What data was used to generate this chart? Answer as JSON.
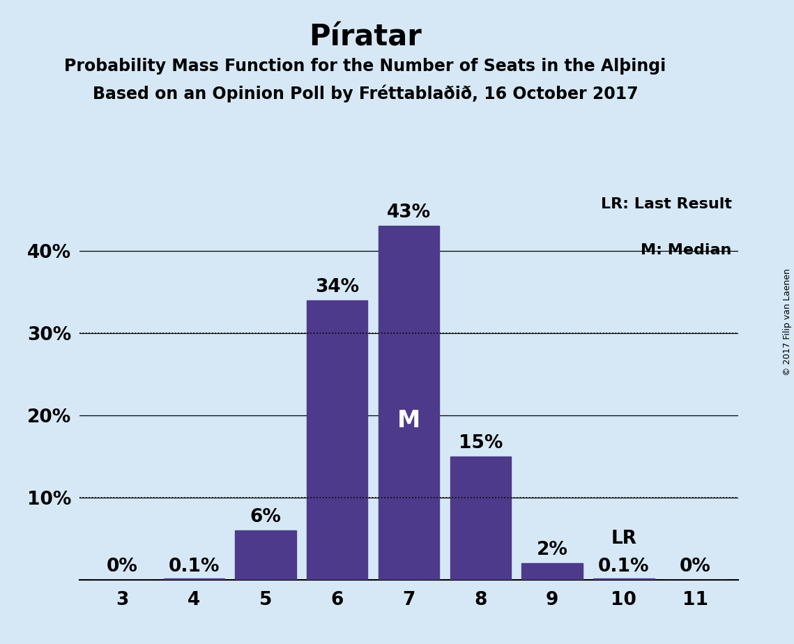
{
  "title": "Píratar",
  "subtitle1": "Probability Mass Function for the Number of Seats in the Alþingi",
  "subtitle2": "Based on an Opinion Poll by Fréttablaðið, 16 October 2017",
  "copyright": "© 2017 Filip van Laenen",
  "seats": [
    3,
    4,
    5,
    6,
    7,
    8,
    9,
    10,
    11
  ],
  "probabilities": [
    0.0,
    0.001,
    0.06,
    0.34,
    0.43,
    0.15,
    0.02,
    0.001,
    0.0
  ],
  "bar_labels": [
    "0%",
    "0.1%",
    "6%",
    "34%",
    "43%",
    "15%",
    "2%",
    "0.1%",
    "0%"
  ],
  "bar_color": "#4d3a8a",
  "median_seat": 7,
  "median_label": "M",
  "lr_seat": 10,
  "lr_label": "LR",
  "background_color": "#d6e8f5",
  "ytick_values": [
    0.1,
    0.2,
    0.3,
    0.4
  ],
  "ytick_labels": [
    "10%",
    "20%",
    "30%",
    "40%"
  ],
  "ymax": 0.47,
  "legend_lr": "LR: Last Result",
  "legend_m": "M: Median",
  "title_fontsize": 30,
  "subtitle_fontsize": 17,
  "tick_fontsize": 19,
  "bar_label_fontsize": 19,
  "median_label_fontsize": 24,
  "legend_fontsize": 16,
  "copyright_fontsize": 9
}
